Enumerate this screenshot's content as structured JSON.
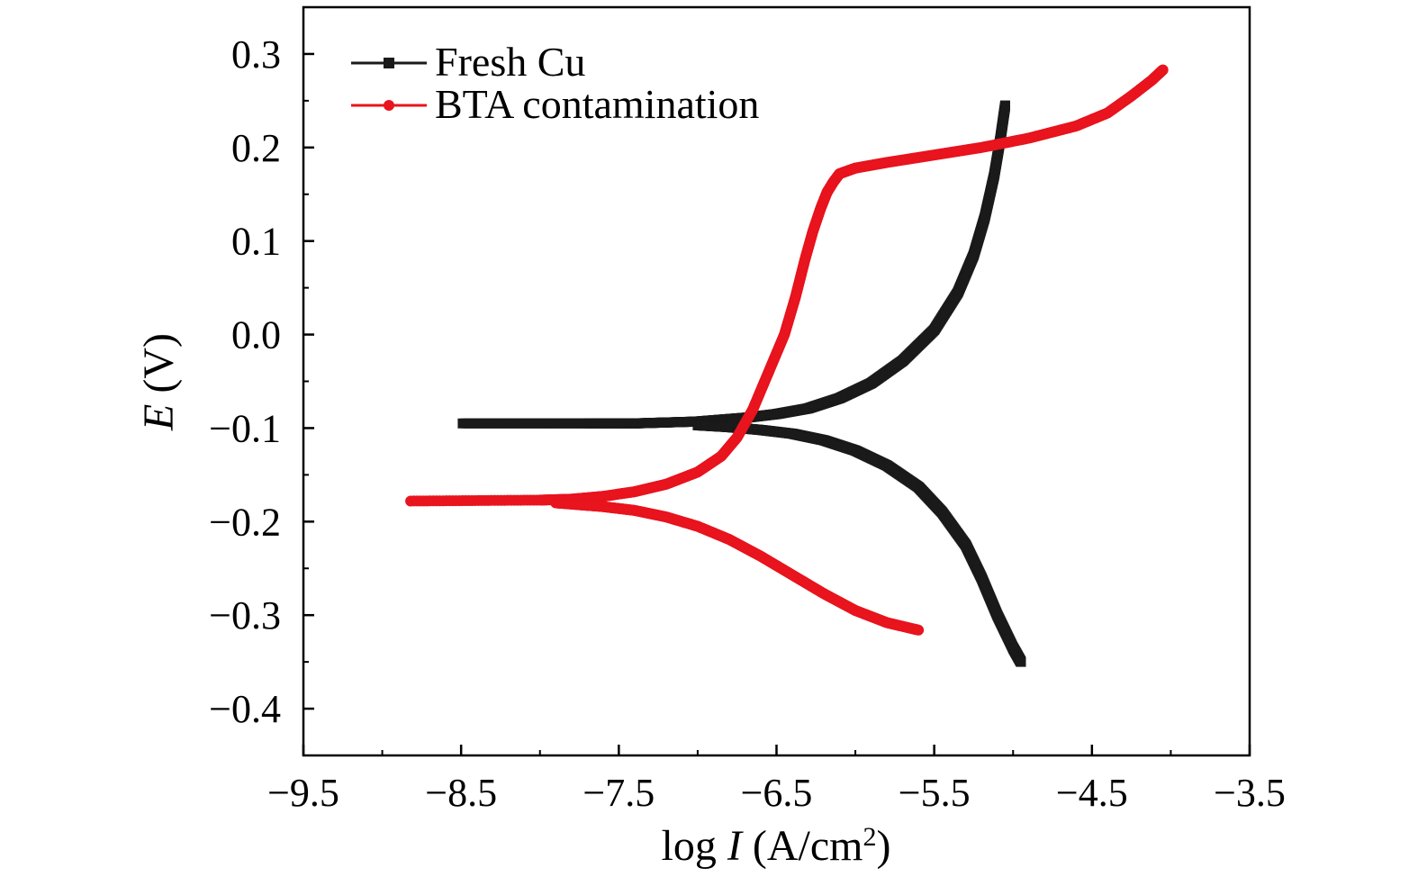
{
  "chart_data": {
    "type": "line",
    "xlabel": {
      "prefix": "log ",
      "var": "I",
      "unit_open": " (A/cm",
      "unit_sup": "2",
      "unit_close": ")"
    },
    "ylabel": {
      "var": "E",
      "unit": " (V)"
    },
    "xlim": [
      -9.5,
      -3.5
    ],
    "ylim": [
      -0.45,
      0.35
    ],
    "x_ticks": [
      -9.5,
      -8.5,
      -7.5,
      -6.5,
      -5.5,
      -4.5,
      -3.5
    ],
    "x_tick_labels": [
      "−9.5",
      "−8.5",
      "−7.5",
      "−6.5",
      "−5.5",
      "−4.5",
      "−3.5"
    ],
    "y_ticks": [
      0.3,
      0.2,
      0.1,
      0.0,
      -0.1,
      -0.2,
      -0.3,
      -0.4
    ],
    "y_tick_labels": [
      "0.3",
      "0.2",
      "0.1",
      "0.0",
      "−0.1",
      "−0.2",
      "−0.3",
      "−0.4"
    ],
    "grid": false,
    "legend_position": "top-left",
    "series": [
      {
        "name": "Fresh Cu",
        "color": "#1a1a1a",
        "marker": "square",
        "anodic": [
          [
            -8.49,
            -0.095
          ],
          [
            -7.7,
            -0.095
          ],
          [
            -7.4,
            -0.095
          ],
          [
            -7.2,
            -0.094
          ],
          [
            -7.0,
            -0.093
          ],
          [
            -6.85,
            -0.091
          ],
          [
            -6.7,
            -0.089
          ],
          [
            -6.5,
            -0.085
          ],
          [
            -6.3,
            -0.079
          ],
          [
            -6.1,
            -0.068
          ],
          [
            -5.9,
            -0.052
          ],
          [
            -5.7,
            -0.028
          ],
          [
            -5.5,
            0.005
          ],
          [
            -5.35,
            0.045
          ],
          [
            -5.25,
            0.085
          ],
          [
            -5.18,
            0.125
          ],
          [
            -5.12,
            0.17
          ],
          [
            -5.08,
            0.21
          ],
          [
            -5.05,
            0.245
          ]
        ],
        "cathodic": [
          [
            -7.0,
            -0.097
          ],
          [
            -6.8,
            -0.099
          ],
          [
            -6.6,
            -0.102
          ],
          [
            -6.4,
            -0.106
          ],
          [
            -6.2,
            -0.113
          ],
          [
            -6.0,
            -0.124
          ],
          [
            -5.8,
            -0.14
          ],
          [
            -5.6,
            -0.163
          ],
          [
            -5.45,
            -0.19
          ],
          [
            -5.3,
            -0.225
          ],
          [
            -5.2,
            -0.26
          ],
          [
            -5.1,
            -0.3
          ],
          [
            -5.0,
            -0.335
          ],
          [
            -4.95,
            -0.35
          ]
        ]
      },
      {
        "name": "BTA contamination",
        "color": "#e8141e",
        "marker": "circle",
        "anodic": [
          [
            -8.82,
            -0.178
          ],
          [
            -8.0,
            -0.177
          ],
          [
            -7.8,
            -0.176
          ],
          [
            -7.6,
            -0.173
          ],
          [
            -7.4,
            -0.168
          ],
          [
            -7.2,
            -0.16
          ],
          [
            -7.0,
            -0.147
          ],
          [
            -6.85,
            -0.13
          ],
          [
            -6.75,
            -0.11
          ],
          [
            -6.65,
            -0.08
          ],
          [
            -6.55,
            -0.04
          ],
          [
            -6.45,
            0.0
          ],
          [
            -6.38,
            0.04
          ],
          [
            -6.32,
            0.08
          ],
          [
            -6.27,
            0.11
          ],
          [
            -6.22,
            0.135
          ],
          [
            -6.18,
            0.152
          ],
          [
            -6.14,
            0.163
          ],
          [
            -6.1,
            0.172
          ],
          [
            -6.0,
            0.178
          ],
          [
            -5.8,
            0.184
          ],
          [
            -5.5,
            0.192
          ],
          [
            -5.2,
            0.2
          ],
          [
            -4.9,
            0.21
          ],
          [
            -4.6,
            0.223
          ],
          [
            -4.4,
            0.237
          ],
          [
            -4.25,
            0.255
          ],
          [
            -4.12,
            0.272
          ],
          [
            -4.05,
            0.283
          ]
        ],
        "cathodic": [
          [
            -7.9,
            -0.18
          ],
          [
            -7.6,
            -0.184
          ],
          [
            -7.4,
            -0.188
          ],
          [
            -7.2,
            -0.195
          ],
          [
            -7.0,
            -0.205
          ],
          [
            -6.8,
            -0.219
          ],
          [
            -6.6,
            -0.237
          ],
          [
            -6.4,
            -0.257
          ],
          [
            -6.2,
            -0.277
          ],
          [
            -6.0,
            -0.295
          ],
          [
            -5.8,
            -0.308
          ],
          [
            -5.6,
            -0.316
          ]
        ]
      }
    ]
  }
}
